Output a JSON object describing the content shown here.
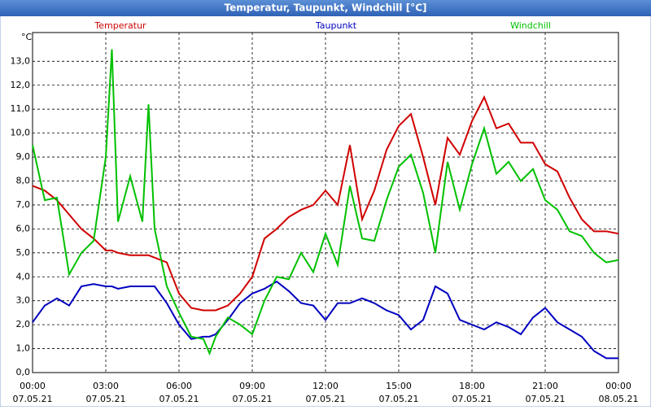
{
  "chart_data": {
    "type": "line",
    "title": "Temperatur, Taupunkt, Windchill [°C]",
    "y_label": "°C",
    "x": [
      0,
      0.5,
      1,
      1.5,
      2,
      2.5,
      3,
      3.25,
      3.5,
      4,
      4.5,
      4.75,
      5,
      5.5,
      6,
      6.5,
      7,
      7.25,
      7.5,
      8,
      8.5,
      9,
      9.5,
      10,
      10.5,
      11,
      11.5,
      12,
      12.5,
      13,
      13.5,
      14,
      14.5,
      15,
      15.5,
      16,
      16.5,
      17,
      17.5,
      18,
      18.5,
      19,
      19.5,
      20,
      20.5,
      21,
      21.5,
      22,
      22.5,
      23,
      23.5,
      24
    ],
    "series": [
      {
        "name": "Temperatur",
        "color": "#d00000",
        "values": [
          7.8,
          7.6,
          7.2,
          6.6,
          6.0,
          5.6,
          5.1,
          5.1,
          5.0,
          4.9,
          4.9,
          4.9,
          4.8,
          4.6,
          3.3,
          2.7,
          2.6,
          2.6,
          2.6,
          2.8,
          3.3,
          4.0,
          5.6,
          6.0,
          6.5,
          6.8,
          7.0,
          7.6,
          7.0,
          9.5,
          6.4,
          7.6,
          9.3,
          10.3,
          10.8,
          9.0,
          7.0,
          9.8,
          9.1,
          10.5,
          11.5,
          10.2,
          10.4,
          9.6,
          9.6,
          8.7,
          8.4,
          7.3,
          6.4,
          5.9,
          5.9,
          5.8
        ]
      },
      {
        "name": "Taupunkt",
        "color": "#0000c0",
        "values": [
          2.1,
          2.8,
          3.1,
          2.8,
          3.6,
          3.7,
          3.6,
          3.6,
          3.5,
          3.6,
          3.6,
          3.6,
          3.6,
          2.9,
          2.0,
          1.4,
          1.5,
          1.5,
          1.6,
          2.2,
          2.9,
          3.3,
          3.5,
          3.8,
          3.4,
          2.9,
          2.8,
          2.2,
          2.9,
          2.9,
          3.1,
          2.9,
          2.6,
          2.4,
          1.8,
          2.2,
          3.6,
          3.3,
          2.2,
          2.0,
          1.8,
          2.1,
          1.9,
          1.6,
          2.3,
          2.7,
          2.1,
          1.8,
          1.5,
          0.9,
          0.6,
          0.6
        ]
      },
      {
        "name": "Windchill",
        "color": "#00c000",
        "values": [
          9.5,
          7.2,
          7.3,
          4.1,
          5.0,
          5.5,
          9.0,
          13.5,
          6.3,
          8.2,
          6.3,
          11.2,
          6.0,
          3.6,
          2.5,
          1.5,
          1.4,
          0.8,
          1.5,
          2.3,
          2.0,
          1.6,
          3.0,
          4.0,
          3.9,
          5.0,
          4.2,
          5.8,
          4.5,
          7.8,
          5.6,
          5.5,
          7.2,
          8.6,
          9.1,
          7.5,
          5.0,
          8.8,
          6.8,
          8.7,
          10.2,
          8.3,
          8.8,
          8.0,
          8.5,
          7.2,
          6.8,
          5.9,
          5.7,
          5.0,
          4.6,
          4.7
        ]
      }
    ],
    "xlim": [
      0,
      24
    ],
    "xticks": [
      {
        "value": 0,
        "label": "00:00"
      },
      {
        "value": 3,
        "label": "03:00"
      },
      {
        "value": 6,
        "label": "06:00"
      },
      {
        "value": 9,
        "label": "09:00"
      },
      {
        "value": 12,
        "label": "12:00"
      },
      {
        "value": 15,
        "label": "15:00"
      },
      {
        "value": 18,
        "label": "18:00"
      },
      {
        "value": 21,
        "label": "21:00"
      },
      {
        "value": 24,
        "label": "00:00"
      }
    ],
    "xtick_dates": [
      "07.05.21",
      "07.05.21",
      "07.05.21",
      "07.05.21",
      "07.05.21",
      "07.05.21",
      "07.05.21",
      "07.05.21",
      "08.05.21"
    ],
    "ylim": [
      0,
      14.2
    ],
    "yticks": [
      {
        "value": 0,
        "label": "0,0"
      },
      {
        "value": 1,
        "label": "1,0"
      },
      {
        "value": 2,
        "label": "2,0"
      },
      {
        "value": 3,
        "label": "3,0"
      },
      {
        "value": 4,
        "label": "4,0"
      },
      {
        "value": 5,
        "label": "5,0"
      },
      {
        "value": 6,
        "label": "6,0"
      },
      {
        "value": 7,
        "label": "7,0"
      },
      {
        "value": 8,
        "label": "8,0"
      },
      {
        "value": 9,
        "label": "9,0"
      },
      {
        "value": 10,
        "label": "10,0"
      },
      {
        "value": 11,
        "label": "11,0"
      },
      {
        "value": 12,
        "label": "12,0"
      },
      {
        "value": 13,
        "label": "13,0"
      }
    ],
    "grid": true
  }
}
